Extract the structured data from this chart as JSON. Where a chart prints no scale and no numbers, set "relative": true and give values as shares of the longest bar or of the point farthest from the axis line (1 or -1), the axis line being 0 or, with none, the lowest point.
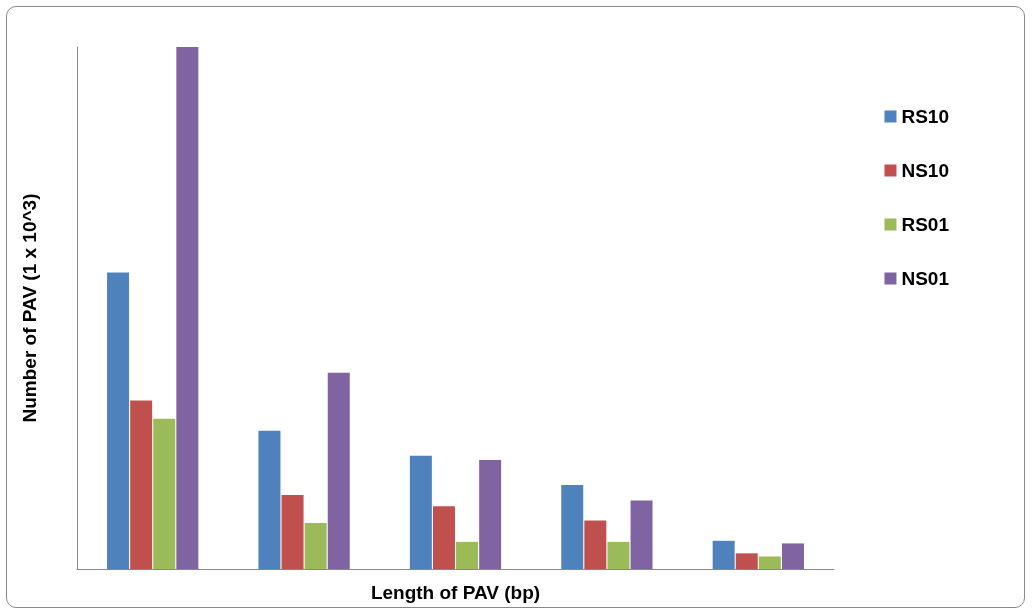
{
  "chart_data": {
    "type": "bar",
    "relative": true,
    "xlabel": "Length of PAV (bp)",
    "ylabel": "Number of PAV (1 x 10^3)",
    "categories": [
      null,
      null,
      null,
      null,
      null
    ],
    "series": [
      {
        "name": "RS10",
        "color": "#4f81bd",
        "values": [
          0.568,
          0.265,
          0.217,
          0.161,
          0.054
        ]
      },
      {
        "name": "NS10",
        "color": "#c0504d",
        "values": [
          0.323,
          0.142,
          0.12,
          0.093,
          0.03
        ]
      },
      {
        "name": "RS01",
        "color": "#9bbb59",
        "values": [
          0.288,
          0.088,
          0.052,
          0.052,
          0.024
        ]
      },
      {
        "name": "NS01",
        "color": "#8064a2",
        "values": [
          1,
          0.376,
          0.209,
          0.131,
          0.049
        ]
      }
    ],
    "legend": "right",
    "grid": false
  }
}
